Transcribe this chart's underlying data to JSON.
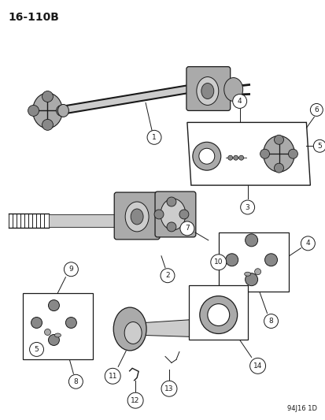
{
  "page_id": "16-110B",
  "doc_id": "94J16 1D",
  "bg_color": "#ffffff",
  "line_color": "#1a1a1a",
  "gray1": "#888888",
  "gray2": "#aaaaaa",
  "gray3": "#cccccc",
  "fig_width": 4.14,
  "fig_height": 5.33,
  "dpi": 100,
  "title_fs": 10,
  "num_fs": 6.5,
  "docid_fs": 6
}
